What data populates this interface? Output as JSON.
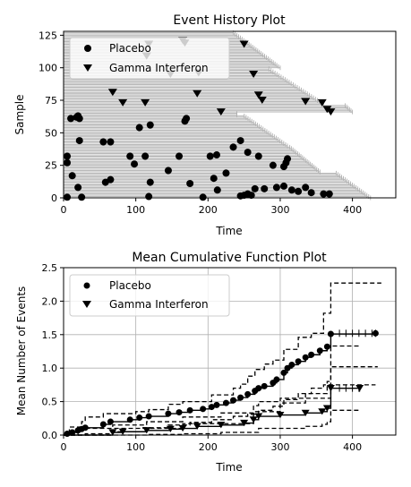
{
  "chart_data": [
    {
      "type": "scatter",
      "title": "Event History Plot",
      "xlabel": "Time",
      "ylabel": "Sample",
      "xlim": [
        0,
        460
      ],
      "ylim": [
        0,
        128
      ],
      "xticks": [
        "0",
        "100",
        "200",
        "300",
        "400"
      ],
      "yticks": [
        "0",
        "25",
        "50",
        "75",
        "100",
        "125"
      ],
      "legend": {
        "placement": "top-left",
        "entries": [
          "Placebo",
          "Gamma Interferon"
        ]
      },
      "grid": false,
      "colors": {
        "lines": "#b0b0b0",
        "markers": "#000000"
      },
      "series": [
        {
          "name": "Placebo",
          "marker": "circle",
          "points": [
            [
              5,
              0.5
            ],
            [
              25,
              0.5
            ],
            [
              118,
              1
            ],
            [
              193,
              0.5
            ],
            [
              245,
              1.5
            ],
            [
              250,
              2
            ],
            [
              255,
              3
            ],
            [
              260,
              2
            ],
            [
              265,
              7
            ],
            [
              278,
              7
            ],
            [
              295,
              8
            ],
            [
              305,
              9
            ],
            [
              316,
              6
            ],
            [
              325,
              5
            ],
            [
              335,
              8
            ],
            [
              343,
              4
            ],
            [
              360,
              3
            ],
            [
              368,
              3
            ],
            [
              5,
              32
            ],
            [
              5,
              27
            ],
            [
              12,
              17
            ],
            [
              20,
              8
            ],
            [
              22,
              44
            ],
            [
              55,
              43
            ],
            [
              65,
              43
            ],
            [
              58,
              12
            ],
            [
              65,
              14
            ],
            [
              92,
              32
            ],
            [
              98,
              26
            ],
            [
              113,
              32
            ],
            [
              120,
              12
            ],
            [
              145,
              21
            ],
            [
              160,
              32
            ],
            [
              175,
              11
            ],
            [
              203,
              32
            ],
            [
              208,
              15
            ],
            [
              212,
              33
            ],
            [
              213,
              6
            ],
            [
              225,
              19
            ],
            [
              235,
              39
            ],
            [
              245,
              44
            ],
            [
              255,
              35
            ],
            [
              270,
              32
            ],
            [
              290,
              25
            ],
            [
              305,
              24
            ],
            [
              308,
              27
            ],
            [
              310,
              30
            ],
            [
              10,
              61
            ],
            [
              18,
              62
            ],
            [
              20,
              63
            ],
            [
              22,
              61
            ],
            [
              105,
              54
            ],
            [
              120,
              56
            ],
            [
              168,
              59
            ],
            [
              170,
              61
            ]
          ],
          "ends": [
            [
              365,
              8
            ],
            [
              374,
              0
            ],
            [
              430,
              3
            ],
            [
              432,
              5
            ]
          ]
        },
        {
          "name": "Gamma Interferon",
          "marker": "triangle-down",
          "points": [
            [
              118,
              118
            ],
            [
              115,
              109
            ],
            [
              148,
              95
            ],
            [
              165,
              121
            ],
            [
              168,
              119
            ],
            [
              187,
              96
            ],
            [
              250,
              118
            ],
            [
              263,
              95
            ],
            [
              270,
              79
            ],
            [
              275,
              75
            ],
            [
              335,
              74
            ],
            [
              358,
              73
            ],
            [
              365,
              68
            ],
            [
              370,
              66
            ],
            [
              68,
              81
            ],
            [
              82,
              73
            ],
            [
              113,
              73
            ],
            [
              185,
              80
            ],
            [
              218,
              66
            ]
          ],
          "ends": [
            [
              378,
              67
            ],
            [
              410,
              66
            ]
          ]
        }
      ]
    },
    {
      "type": "line",
      "title": "Mean Cumulative Function Plot",
      "xlabel": "Time",
      "ylabel": "Mean Number of Events",
      "xlim": [
        0,
        460
      ],
      "ylim": [
        0,
        2.5
      ],
      "xticks": [
        "0",
        "100",
        "200",
        "300",
        "400"
      ],
      "yticks": [
        "0.0",
        "0.5",
        "1.0",
        "1.5",
        "2.0",
        "2.5"
      ],
      "legend": {
        "placement": "top-left",
        "entries": [
          "Placebo",
          "Gamma Interferon"
        ]
      },
      "grid": true,
      "colors": {
        "lines": "#000000",
        "grid": "#b0b0b0"
      },
      "series": [
        {
          "name": "Placebo",
          "marker": "circle",
          "mcf": [
            [
              0,
              0
            ],
            [
              5,
              0.02
            ],
            [
              12,
              0.04
            ],
            [
              20,
              0.07
            ],
            [
              25,
              0.09
            ],
            [
              30,
              0.11
            ],
            [
              55,
              0.16
            ],
            [
              65,
              0.2
            ],
            [
              92,
              0.23
            ],
            [
              105,
              0.26
            ],
            [
              118,
              0.28
            ],
            [
              145,
              0.32
            ],
            [
              160,
              0.34
            ],
            [
              175,
              0.37
            ],
            [
              193,
              0.39
            ],
            [
              205,
              0.42
            ],
            [
              212,
              0.45
            ],
            [
              225,
              0.48
            ],
            [
              235,
              0.52
            ],
            [
              245,
              0.56
            ],
            [
              255,
              0.61
            ],
            [
              265,
              0.66
            ],
            [
              270,
              0.7
            ],
            [
              278,
              0.73
            ],
            [
              290,
              0.78
            ],
            [
              295,
              0.83
            ],
            [
              305,
              0.93
            ],
            [
              310,
              1.0
            ],
            [
              316,
              1.05
            ],
            [
              325,
              1.1
            ],
            [
              335,
              1.16
            ],
            [
              343,
              1.2
            ],
            [
              355,
              1.26
            ],
            [
              365,
              1.32
            ],
            [
              370,
              1.51
            ],
            [
              432,
              1.52
            ]
          ],
          "upper": [
            [
              0,
              0
            ],
            [
              8,
              0.12
            ],
            [
              25,
              0.2
            ],
            [
              30,
              0.27
            ],
            [
              55,
              0.32
            ],
            [
              100,
              0.35
            ],
            [
              118,
              0.38
            ],
            [
              145,
              0.46
            ],
            [
              165,
              0.5
            ],
            [
              205,
              0.6
            ],
            [
              235,
              0.7
            ],
            [
              245,
              0.76
            ],
            [
              255,
              0.88
            ],
            [
              265,
              0.98
            ],
            [
              278,
              1.06
            ],
            [
              290,
              1.12
            ],
            [
              305,
              1.28
            ],
            [
              325,
              1.46
            ],
            [
              343,
              1.52
            ],
            [
              360,
              1.82
            ],
            [
              370,
              2.27
            ],
            [
              440,
              2.27
            ]
          ],
          "lower": [
            [
              0,
              0
            ],
            [
              30,
              0.02
            ],
            [
              65,
              0.05
            ],
            [
              110,
              0.11
            ],
            [
              145,
              0.15
            ],
            [
              175,
              0.19
            ],
            [
              205,
              0.23
            ],
            [
              235,
              0.28
            ],
            [
              255,
              0.31
            ],
            [
              270,
              0.37
            ],
            [
              290,
              0.43
            ],
            [
              305,
              0.53
            ],
            [
              325,
              0.62
            ],
            [
              343,
              0.7
            ],
            [
              360,
              0.75
            ],
            [
              370,
              0.75
            ],
            [
              432,
              0.75
            ]
          ]
        },
        {
          "name": "Gamma Interferon",
          "marker": "triangle-down",
          "mcf": [
            [
              0,
              0
            ],
            [
              68,
              0.04
            ],
            [
              82,
              0.05
            ],
            [
              115,
              0.07
            ],
            [
              148,
              0.09
            ],
            [
              165,
              0.1
            ],
            [
              185,
              0.13
            ],
            [
              218,
              0.15
            ],
            [
              250,
              0.18
            ],
            [
              263,
              0.23
            ],
            [
              270,
              0.28
            ],
            [
              300,
              0.3
            ],
            [
              335,
              0.33
            ],
            [
              358,
              0.35
            ],
            [
              365,
              0.4
            ],
            [
              370,
              0.7
            ],
            [
              410,
              0.7
            ]
          ],
          "upper": [
            [
              0,
              0
            ],
            [
              20,
              0.1
            ],
            [
              68,
              0.15
            ],
            [
              115,
              0.2
            ],
            [
              165,
              0.27
            ],
            [
              218,
              0.33
            ],
            [
              263,
              0.44
            ],
            [
              270,
              0.5
            ],
            [
              300,
              0.55
            ],
            [
              335,
              0.62
            ],
            [
              365,
              0.8
            ],
            [
              370,
              1.33
            ],
            [
              410,
              1.33
            ]
          ],
          "lower": [
            [
              0,
              0
            ],
            [
              115,
              0.01
            ],
            [
              165,
              0.02
            ],
            [
              218,
              0.04
            ],
            [
              270,
              0.1
            ],
            [
              335,
              0.13
            ],
            [
              358,
              0.16
            ],
            [
              365,
              0.2
            ],
            [
              370,
              0.37
            ],
            [
              410,
              0.37
            ]
          ],
          "upper2": [
            [
              0,
              0
            ],
            [
              68,
              0.1
            ],
            [
              165,
              0.17
            ],
            [
              263,
              0.35
            ],
            [
              300,
              0.48
            ],
            [
              335,
              0.55
            ],
            [
              370,
              1.02
            ],
            [
              435,
              1.02
            ]
          ]
        }
      ]
    }
  ]
}
